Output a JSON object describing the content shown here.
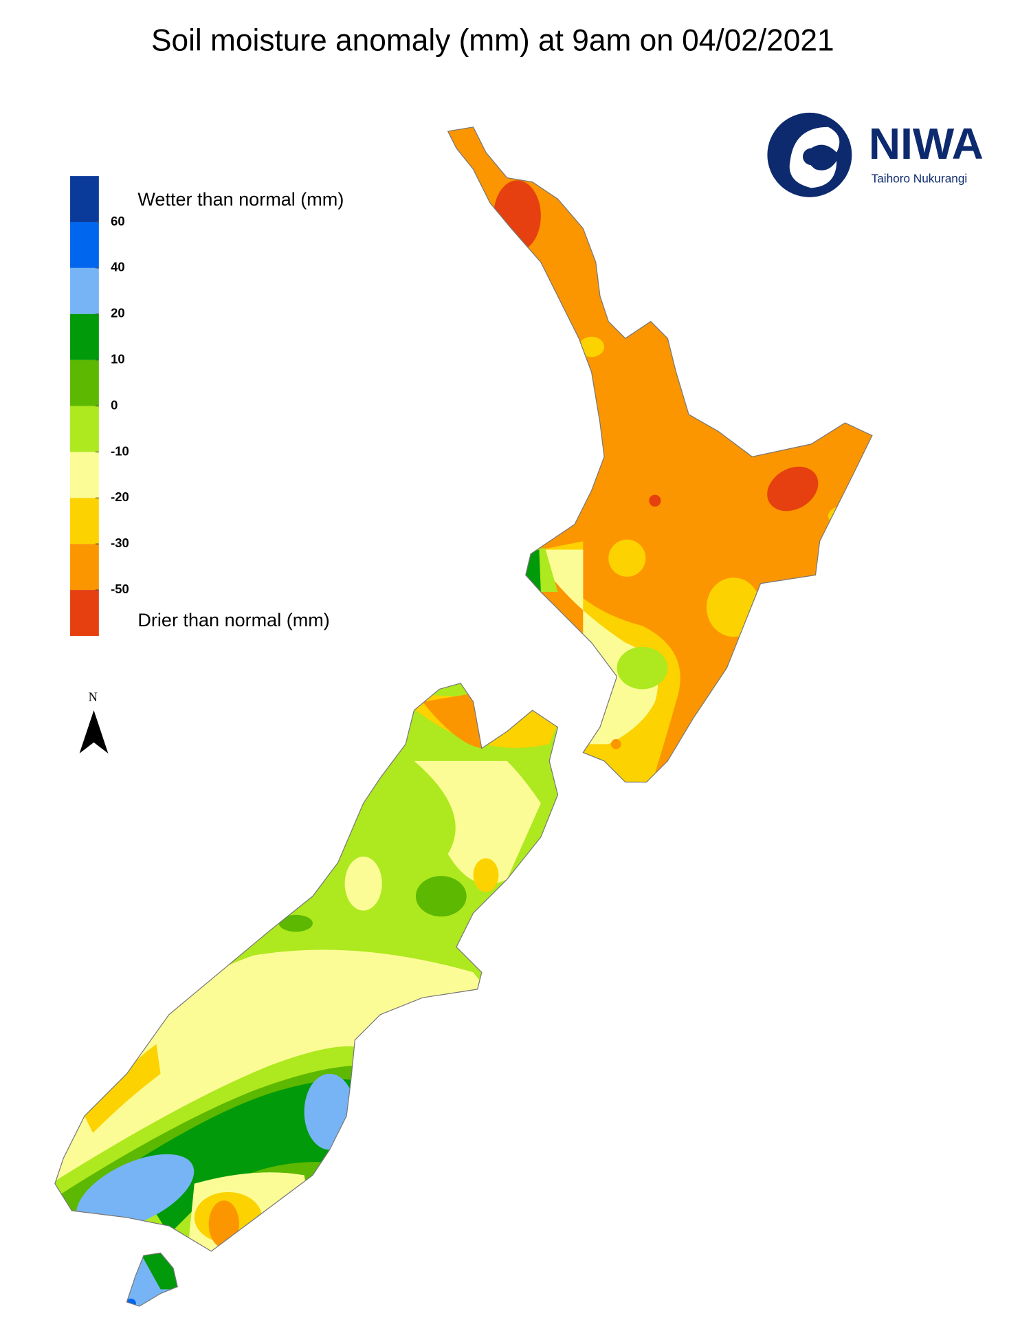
{
  "title": "Soil moisture anomaly (mm) at 9am on 04/02/2021",
  "legend": {
    "wetter_label": "Wetter than normal (mm)",
    "drier_label": "Drier than normal (mm)",
    "colors": [
      "#0a3a9a",
      "#0066ee",
      "#77b4f5",
      "#009a0a",
      "#5cb800",
      "#aee81f",
      "#fcfc96",
      "#fcd200",
      "#fb9600",
      "#e64010"
    ],
    "ticks": [
      60,
      40,
      20,
      10,
      0,
      -10,
      -20,
      -30,
      -50
    ]
  },
  "north_label": "N",
  "logo": {
    "name": "NIWA",
    "subtitle": "Taihoro Nukurangi"
  }
}
